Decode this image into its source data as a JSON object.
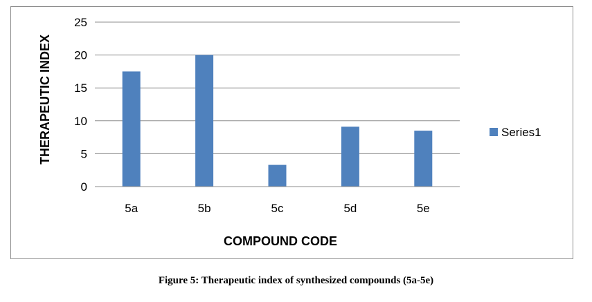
{
  "chart_data": {
    "type": "bar",
    "categories": [
      "5a",
      "5b",
      "5c",
      "5d",
      "5e"
    ],
    "series": [
      {
        "name": "Series1",
        "values": [
          17.5,
          20,
          3.3,
          9.1,
          8.5
        ]
      }
    ],
    "xlabel": "COMPOUND CODE",
    "ylabel": "THERAPEUTIC INDEX",
    "ylim": [
      0,
      25
    ],
    "yticks": [
      0,
      5,
      10,
      15,
      20,
      25
    ],
    "grid": true,
    "legend": "right",
    "colors": {
      "bar": "#4f81bd",
      "grid": "#8c8c8c",
      "axis": "#8c8c8c"
    }
  },
  "caption": "Figure 5: Therapeutic index of synthesized compounds (5a-5e)"
}
